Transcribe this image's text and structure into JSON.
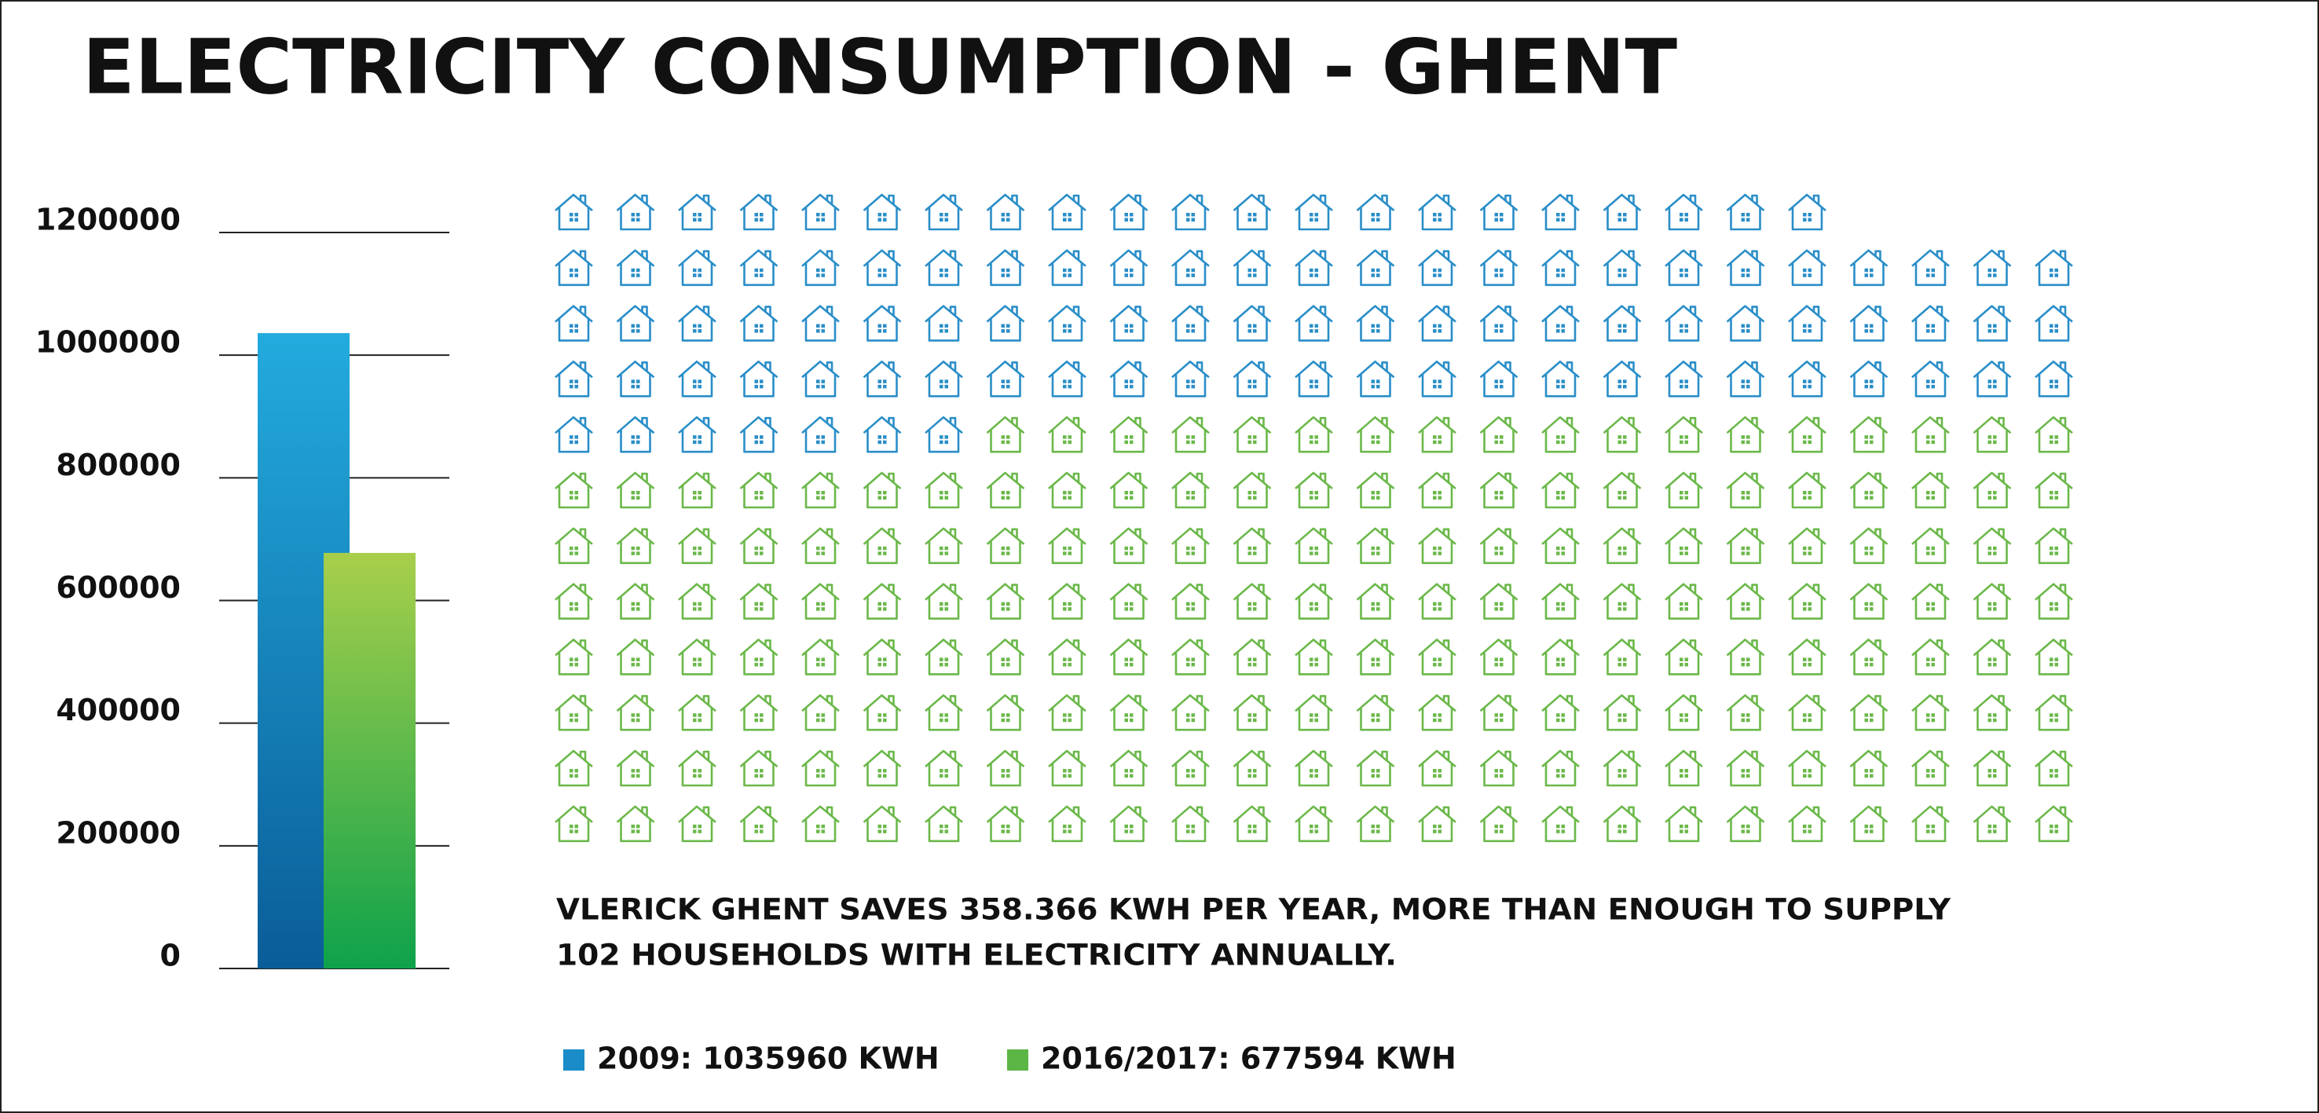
{
  "chart_data": {
    "type": "bar",
    "title": "ELECTRICITY CONSUMPTION - GHENT",
    "series": [
      {
        "name": "2009: 1035960 KWH",
        "color": "#1a8cc8",
        "gradient": [
          "#23abde",
          "#0a5d98"
        ],
        "values": [
          1035960
        ]
      },
      {
        "name": "2016/2017: 677594 KWH",
        "color": "#5cb645",
        "gradient": [
          "#a8cf4b",
          "#0ea24b"
        ],
        "values": [
          677594
        ]
      }
    ],
    "ylim": [
      0,
      1200000
    ],
    "yticks": [
      0,
      200000,
      400000,
      600000,
      800000,
      1000000,
      1200000
    ],
    "grid": true,
    "annotation": [
      "VLERICK GHENT SAVES 358.366 KWH PER YEAR, MORE THAN ENOUGH TO SUPPLY",
      "102 HOUSEHOLDS WITH ELECTRICITY ANNUALLY."
    ],
    "pictogram": {
      "groups": [
        {
          "count": 103,
          "color": "#2a8ec8"
        },
        {
          "count": 193,
          "color": "#6bb84a"
        }
      ]
    }
  }
}
